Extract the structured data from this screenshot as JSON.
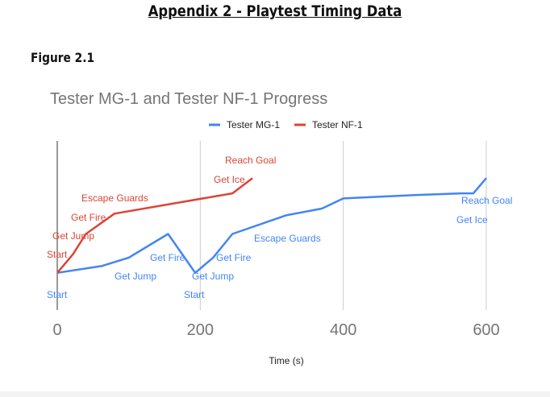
{
  "page": {
    "title": "Appendix 2 - Playtest Timing Data",
    "figure_label": "Figure 2.1"
  },
  "chart_data": {
    "type": "line",
    "title": "Tester MG-1 and Tester NF-1 Progress",
    "xlabel": "Time (s)",
    "ylabel": "",
    "xlim": [
      0,
      620
    ],
    "ylim": [
      0,
      100
    ],
    "x_ticks": [
      0,
      200,
      400,
      600
    ],
    "x_tick_labels": [
      "0",
      "200",
      "400",
      "600"
    ],
    "grid": "vertical",
    "legend_position": "top",
    "series": [
      {
        "name": "Tester MG-1",
        "color": "#4285f4",
        "points": [
          {
            "x": 0,
            "y": 22,
            "label": "Start"
          },
          {
            "x": 62,
            "y": 26
          },
          {
            "x": 100,
            "y": 31,
            "label": "Get Jump"
          },
          {
            "x": 155,
            "y": 45,
            "label": "Get Fire"
          },
          {
            "x": 193,
            "y": 22,
            "label": "Start"
          },
          {
            "x": 218,
            "y": 31,
            "label": "Get Jump"
          },
          {
            "x": 245,
            "y": 45,
            "label": "Get Fire"
          },
          {
            "x": 320,
            "y": 56,
            "label": "Escape Guards"
          },
          {
            "x": 370,
            "y": 60
          },
          {
            "x": 400,
            "y": 66
          },
          {
            "x": 500,
            "y": 68
          },
          {
            "x": 565,
            "y": 69,
            "label": "Get Ice"
          },
          {
            "x": 582,
            "y": 69
          },
          {
            "x": 600,
            "y": 78,
            "label": "Reach Goal"
          }
        ]
      },
      {
        "name": "Tester NF-1",
        "color": "#db4437",
        "points": [
          {
            "x": 0,
            "y": 22,
            "label": "Start"
          },
          {
            "x": 22,
            "y": 33,
            "label": "Get Jump"
          },
          {
            "x": 40,
            "y": 45
          },
          {
            "x": 80,
            "y": 57,
            "label": "Escape Guards"
          },
          {
            "x": 245,
            "y": 69,
            "label": "Get Ice"
          },
          {
            "x": 273,
            "y": 78,
            "label": "Reach Goal"
          }
        ]
      }
    ],
    "annotations": [
      {
        "series": "Tester NF-1",
        "text": "Start"
      },
      {
        "series": "Tester NF-1",
        "text": "Get Jump"
      },
      {
        "series": "Tester NF-1",
        "text": "Get Fire"
      },
      {
        "series": "Tester NF-1",
        "text": "Escape Guards"
      },
      {
        "series": "Tester NF-1",
        "text": "Get Ice"
      },
      {
        "series": "Tester NF-1",
        "text": "Reach Goal"
      },
      {
        "series": "Tester MG-1",
        "text": "Start"
      },
      {
        "series": "Tester MG-1",
        "text": "Get Jump"
      },
      {
        "series": "Tester MG-1",
        "text": "Get Fire"
      },
      {
        "series": "Tester MG-1",
        "text": "Start"
      },
      {
        "series": "Tester MG-1",
        "text": "Get Jump"
      },
      {
        "series": "Tester MG-1",
        "text": "Get Fire"
      },
      {
        "series": "Tester MG-1",
        "text": "Escape Guards"
      },
      {
        "series": "Tester MG-1",
        "text": "Reach Goal"
      },
      {
        "series": "Tester MG-1",
        "text": "Get Ice"
      }
    ]
  }
}
